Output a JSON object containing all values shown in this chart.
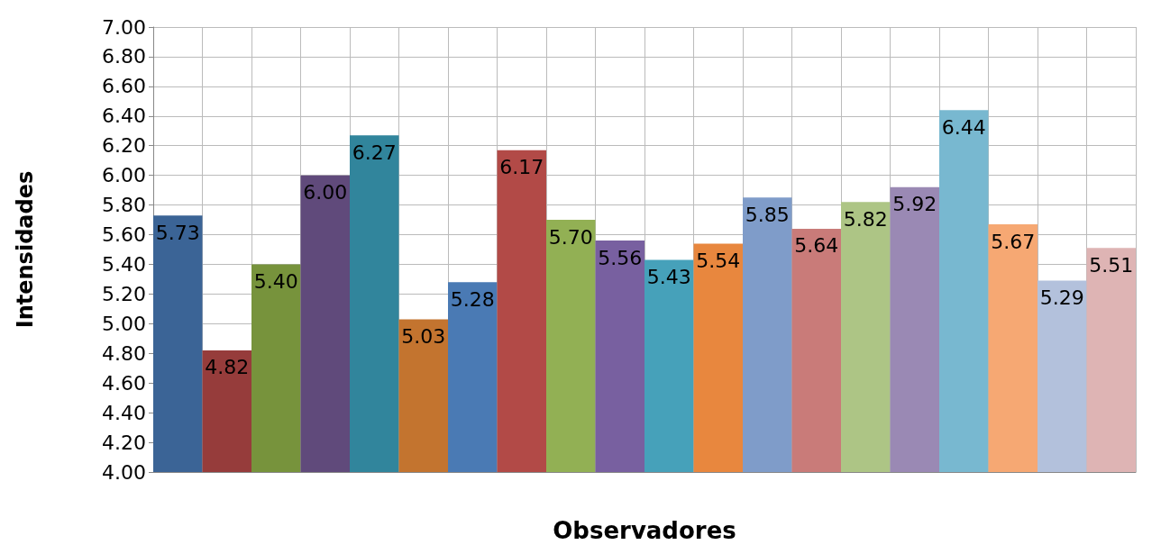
{
  "chart_data": {
    "type": "bar",
    "xlabel": "Observadores",
    "ylabel": "Intensidades",
    "categories": [
      null,
      null,
      null,
      null,
      null,
      null,
      null,
      null,
      null,
      null,
      null,
      null,
      null,
      null,
      null,
      null,
      null,
      null,
      null,
      null
    ],
    "values": [
      5.73,
      4.82,
      5.4,
      6.0,
      6.27,
      5.03,
      5.28,
      6.17,
      5.7,
      5.56,
      5.43,
      5.54,
      5.85,
      5.64,
      5.82,
      5.92,
      6.44,
      5.67,
      5.29,
      5.51
    ],
    "colors": [
      "#3b6496",
      "#963c3b",
      "#77933c",
      "#604a7b",
      "#31859c",
      "#c3742f",
      "#4a7ab4",
      "#b24a47",
      "#92b054",
      "#7860a0",
      "#46a1ba",
      "#e8873e",
      "#7f9cc9",
      "#c97b79",
      "#adc585",
      "#9a89b4",
      "#78b8d0",
      "#f6a873",
      "#b3c1dc",
      "#deb4b4"
    ],
    "ylim": [
      4,
      7
    ],
    "yticks": [
      {
        "value": 4,
        "label": "4.00"
      },
      {
        "value": 4.2,
        "label": "4.20"
      },
      {
        "value": 4.4,
        "label": "4.40"
      },
      {
        "value": 4.6,
        "label": "4.60"
      },
      {
        "value": 4.8,
        "label": "4.80"
      },
      {
        "value": 5,
        "label": "5.00"
      },
      {
        "value": 5.2,
        "label": "5.20"
      },
      {
        "value": 5.4,
        "label": "5.40"
      },
      {
        "value": 5.6,
        "label": "5.60"
      },
      {
        "value": 5.8,
        "label": "5.80"
      },
      {
        "value": 6,
        "label": "6.00"
      },
      {
        "value": 6.2,
        "label": "6.20"
      },
      {
        "value": 6.4,
        "label": "6.40"
      },
      {
        "value": 6.6,
        "label": "6.60"
      },
      {
        "value": 6.8,
        "label": "6.80"
      },
      {
        "value": 7,
        "label": "7.00"
      }
    ],
    "value_labels": [
      "5.73",
      "4.82",
      "5.40",
      "6.00",
      "6.27",
      "5.03",
      "5.28",
      "6.17",
      "5.70",
      "5.56",
      "5.43",
      "5.54",
      "5.85",
      "5.64",
      "5.82",
      "5.92",
      "6.44",
      "5.67",
      "5.29",
      "5.51"
    ],
    "grid": true
  }
}
